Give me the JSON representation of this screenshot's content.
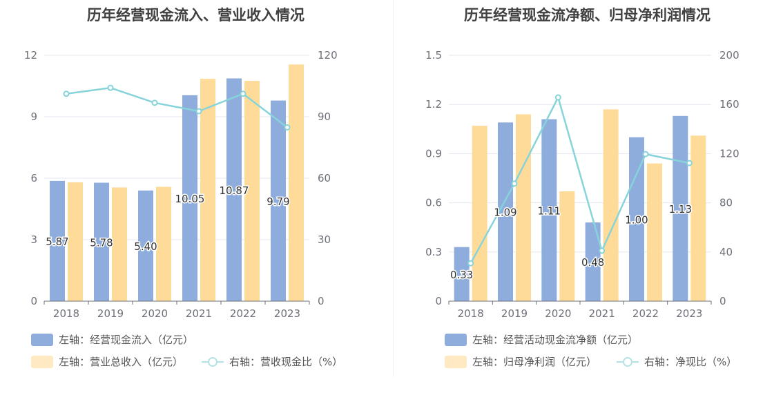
{
  "chart_data": [
    {
      "type": "bar",
      "title": "历年经营现金流入、营业收入情况",
      "categories": [
        "2018",
        "2019",
        "2020",
        "2021",
        "2022",
        "2023"
      ],
      "left_axis": {
        "min": 0,
        "max": 12,
        "ticks": [
          "0",
          "3",
          "6",
          "9",
          "12"
        ]
      },
      "right_axis": {
        "min": 0,
        "max": 120,
        "ticks": [
          "0",
          "30",
          "60",
          "90",
          "120"
        ]
      },
      "series": [
        {
          "name": "左轴：经营现金流入（亿元）",
          "type": "bar",
          "axis": "left",
          "color": "#8eaddc",
          "values": [
            5.87,
            5.78,
            5.4,
            10.05,
            10.87,
            9.79
          ],
          "labels": [
            "5.87",
            "5.78",
            "5.40",
            "10.05",
            "10.87",
            "9.79"
          ]
        },
        {
          "name": "左轴：营业总收入（亿元）",
          "type": "bar",
          "axis": "left",
          "color": "#ffdb9a",
          "values": [
            5.8,
            5.55,
            5.58,
            10.85,
            10.75,
            11.55
          ]
        },
        {
          "name": "右轴：营收现金比（%）",
          "type": "line",
          "axis": "right",
          "color": "#86d4da",
          "values": [
            101.2,
            104.1,
            96.8,
            92.7,
            101.2,
            84.8
          ]
        }
      ]
    },
    {
      "type": "bar",
      "title": "历年经营现金流净额、归母净利润情况",
      "categories": [
        "2018",
        "2019",
        "2020",
        "2021",
        "2022",
        "2023"
      ],
      "left_axis": {
        "min": 0,
        "max": 1.5,
        "ticks": [
          "0",
          "0.3",
          "0.6",
          "0.9",
          "1.2",
          "1.5"
        ]
      },
      "right_axis": {
        "min": 0,
        "max": 200,
        "ticks": [
          "0",
          "40",
          "80",
          "120",
          "160",
          "200"
        ]
      },
      "series": [
        {
          "name": "左轴：经营活动现金流净额（亿元）",
          "type": "bar",
          "axis": "left",
          "color": "#8eaddc",
          "values": [
            0.33,
            1.09,
            1.11,
            0.48,
            1.0,
            1.13
          ],
          "labels": [
            "0.33",
            "1.09",
            "1.11",
            "0.48",
            "1.00",
            "1.13"
          ]
        },
        {
          "name": "左轴：归母净利润（亿元）",
          "type": "bar",
          "axis": "left",
          "color": "#ffdb9a",
          "values": [
            1.07,
            1.14,
            0.67,
            1.17,
            0.84,
            1.01
          ]
        },
        {
          "name": "右轴：净现比（%）",
          "type": "line",
          "axis": "right",
          "color": "#86d4da",
          "values": [
            30.8,
            95.6,
            165.7,
            41.0,
            119.6,
            112.3
          ]
        }
      ]
    }
  ]
}
